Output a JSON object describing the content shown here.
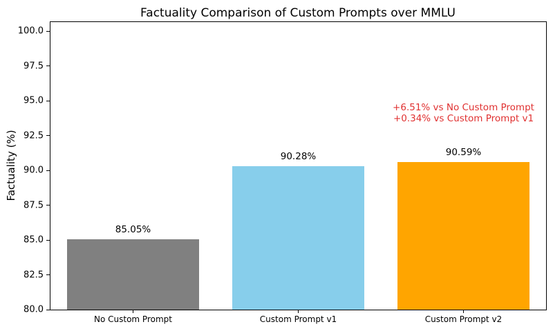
{
  "figure": {
    "background": "#ffffff",
    "text_color": "#000000"
  },
  "chart_data": {
    "type": "bar",
    "title": "Factuality Comparison of Custom Prompts over MMLU",
    "xlabel": "",
    "ylabel": "Factuality (%)",
    "categories": [
      "No Custom Prompt",
      "Custom Prompt v1",
      "Custom Prompt v2"
    ],
    "values": [
      85.05,
      90.28,
      90.59
    ],
    "bar_labels": [
      "85.05%",
      "90.28%",
      "90.59%"
    ],
    "bar_colors": [
      "#808080",
      "#87ceeb",
      "#ffa500"
    ],
    "ylim": [
      80.0,
      100.65
    ],
    "yticks": [
      80.0,
      82.5,
      85.0,
      87.5,
      90.0,
      92.5,
      95.0,
      97.5,
      100.0
    ],
    "ytick_labels": [
      "80.0",
      "82.5",
      "85.0",
      "87.5",
      "90.0",
      "92.5",
      "95.0",
      "97.5",
      "100.0"
    ],
    "grid": false,
    "legend": null,
    "annotation": {
      "lines": [
        "+6.51% vs No Custom Prompt",
        "+0.34% vs Custom Prompt v1"
      ],
      "color": "#e03131",
      "anchor_category": "Custom Prompt v2"
    }
  }
}
